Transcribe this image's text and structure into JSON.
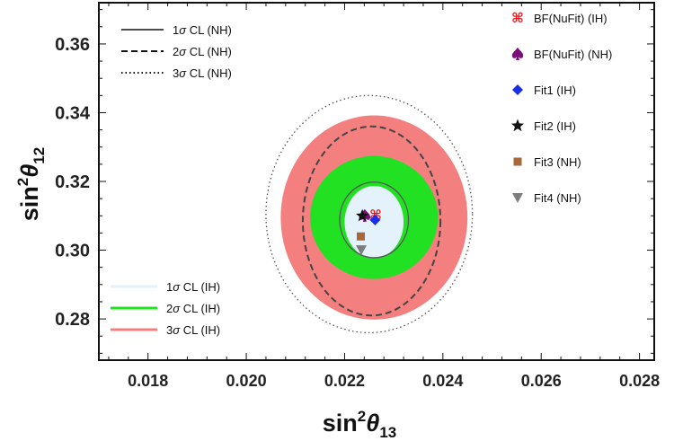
{
  "chart_data": {
    "type": "contour",
    "xlabel": {
      "base": "sin",
      "sup": "2",
      "theta": "θ",
      "sub": "13"
    },
    "ylabel": {
      "base": "sin",
      "sup": "2",
      "theta": "θ",
      "sub": "12"
    },
    "xlim": [
      0.017,
      0.0283
    ],
    "ylim": [
      0.268,
      0.372
    ],
    "xticks": [
      0.018,
      0.02,
      0.022,
      0.024,
      0.026,
      0.028
    ],
    "xtick_labels": [
      "0.018",
      "0.020",
      "0.022",
      "0.024",
      "0.026",
      "0.028"
    ],
    "yticks": [
      0.28,
      0.3,
      0.32,
      0.34,
      0.36
    ],
    "ytick_labels": [
      "0.28",
      "0.30",
      "0.32",
      "0.34",
      "0.36"
    ],
    "regions_IH": [
      {
        "name": "3σ CL (IH)",
        "label": "3",
        "cx": 0.0226,
        "cy": 0.3095,
        "rx": 0.0019,
        "ry": 0.0297,
        "color": "#f47f7f"
      },
      {
        "name": "2σ CL (IH)",
        "label": "2",
        "cx": 0.0226,
        "cy": 0.3095,
        "rx": 0.0013,
        "ry": 0.0179,
        "color": "#22e022"
      },
      {
        "name": "1σ CL (IH)",
        "label": "1",
        "cx": 0.0226,
        "cy": 0.3082,
        "rx": 0.0006,
        "ry": 0.0105,
        "color": "#e3f2fb"
      }
    ],
    "contours_NH": [
      {
        "name": "1σ CL (NH)",
        "label": "1",
        "cx": 0.0226,
        "cy": 0.3088,
        "rx": 0.0007,
        "ry": 0.011,
        "dash": "solid",
        "color": "#555555"
      },
      {
        "name": "2σ CL (NH)",
        "label": "2",
        "cx": 0.02255,
        "cy": 0.3085,
        "rx": 0.0014,
        "ry": 0.0275,
        "dash": "dashed",
        "color": "#444444"
      },
      {
        "name": "3σ CL (NH)",
        "label": "3",
        "cx": 0.0225,
        "cy": 0.3105,
        "rx": 0.0021,
        "ry": 0.0345,
        "dash": "dotted",
        "color": "#555555"
      }
    ],
    "points": [
      {
        "name": "BF(NuFit) (IH)",
        "x": 0.02263,
        "y": 0.3102,
        "marker": "cross-knot",
        "color": "#e8141b"
      },
      {
        "name": "BF(NuFit) (NH)",
        "x": 0.02241,
        "y": 0.3101,
        "marker": "spade",
        "color": "#7a0f7a"
      },
      {
        "name": "Fit1 (IH)",
        "x": 0.02262,
        "y": 0.3088,
        "marker": "diamond",
        "color": "#1a2ee6"
      },
      {
        "name": "Fit2 (IH)",
        "x": 0.02236,
        "y": 0.31,
        "marker": "star",
        "color": "#111111"
      },
      {
        "name": "Fit3 (NH)",
        "x": 0.02233,
        "y": 0.304,
        "marker": "square",
        "color": "#a8683a"
      },
      {
        "name": "Fit4 (NH)",
        "x": 0.02234,
        "y": 0.3001,
        "marker": "triangle-down",
        "color": "#7d7d7d"
      }
    ]
  }
}
